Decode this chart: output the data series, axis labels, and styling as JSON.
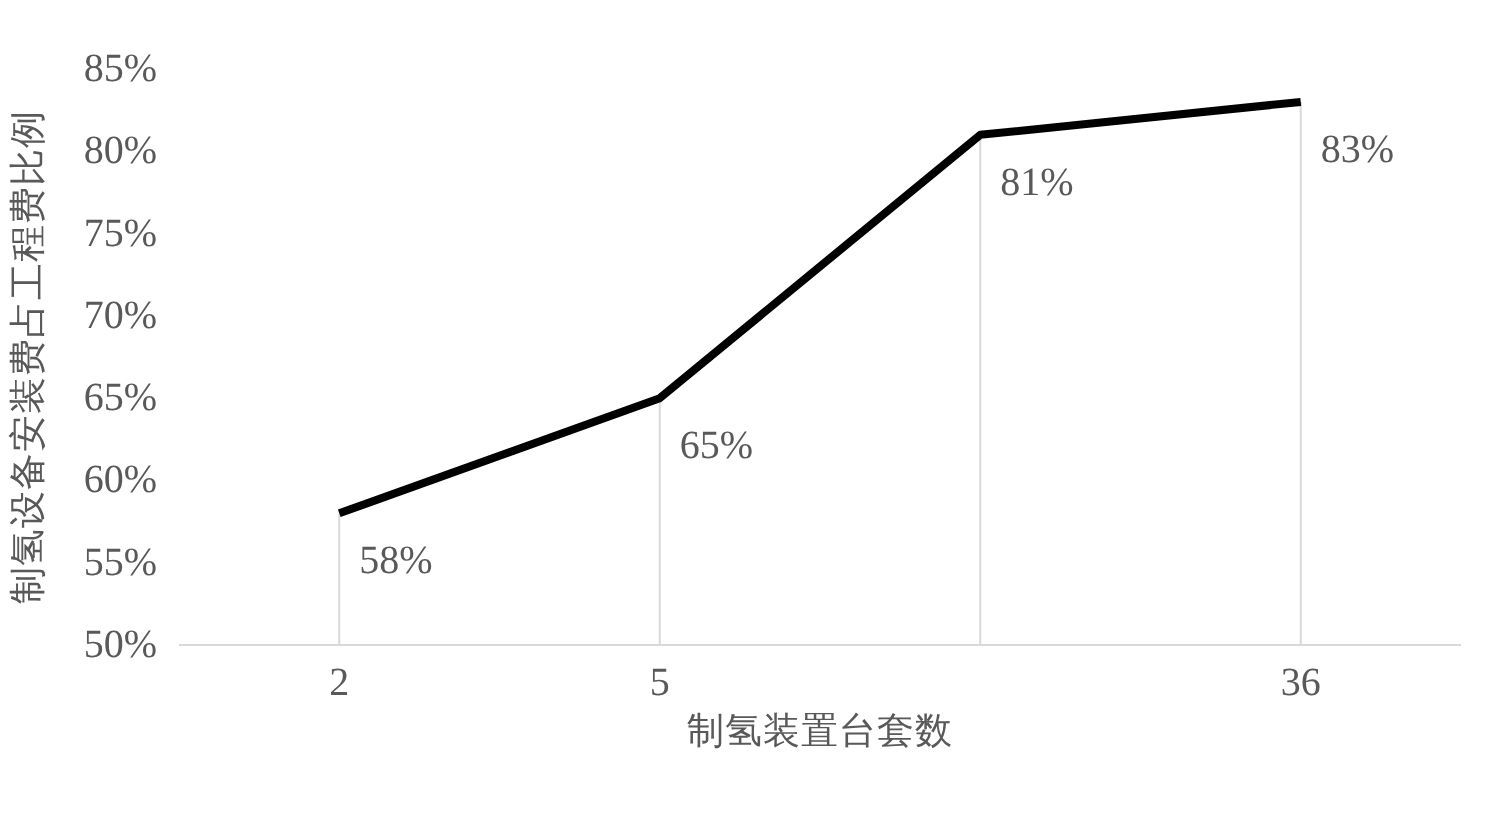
{
  "chart_data": {
    "type": "line",
    "xlabel": "制氢装置台套数",
    "ylabel": "制氢设备安装费占工程费比例",
    "categories": [
      "2",
      "5",
      null,
      "36"
    ],
    "series": [
      {
        "color": "#000000",
        "values": [
          58,
          65,
          81,
          83
        ],
        "value_labels": [
          "58%",
          "65%",
          "81%",
          "83%"
        ]
      }
    ],
    "ylim": [
      50,
      85
    ],
    "yticks": [
      {
        "value": 50,
        "label": "50%"
      },
      {
        "value": 55,
        "label": "55%"
      },
      {
        "value": 60,
        "label": "60%"
      },
      {
        "value": 65,
        "label": "65%"
      },
      {
        "value": 70,
        "label": "70%"
      },
      {
        "value": 75,
        "label": "75%"
      },
      {
        "value": 80,
        "label": "80%"
      },
      {
        "value": 85,
        "label": "85%"
      }
    ],
    "grid": "x",
    "marker": "none",
    "line_style": "solid"
  }
}
